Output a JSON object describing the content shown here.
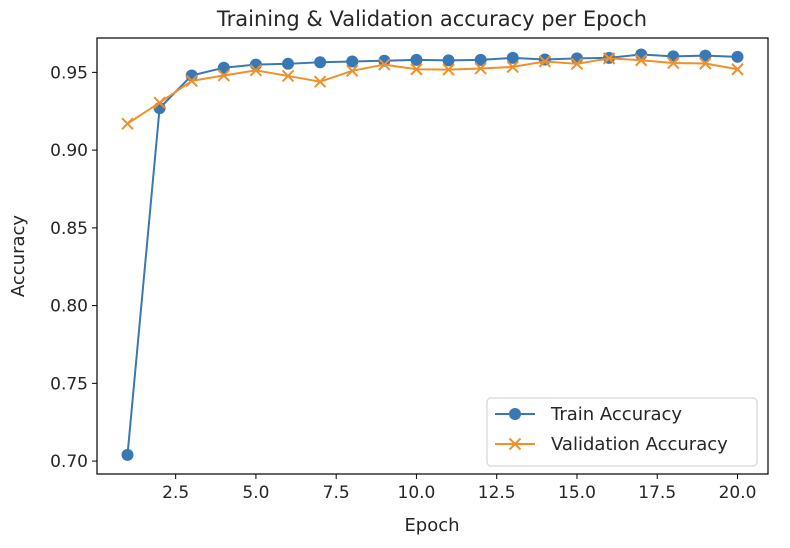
{
  "chart_data": {
    "type": "line",
    "title": "Training & Validation accuracy per Epoch",
    "xlabel": "Epoch",
    "ylabel": "Accuracy",
    "xlim": [
      0.05,
      20.95
    ],
    "ylim": [
      0.6917,
      0.9721
    ],
    "xticks": [
      2.5,
      5.0,
      7.5,
      10.0,
      12.5,
      15.0,
      17.5,
      20.0
    ],
    "xtick_labels": [
      "2.5",
      "5.0",
      "7.5",
      "10.0",
      "12.5",
      "15.0",
      "17.5",
      "20.0"
    ],
    "yticks": [
      0.7,
      0.75,
      0.8,
      0.85,
      0.9,
      0.95
    ],
    "ytick_labels": [
      "0.70",
      "0.75",
      "0.80",
      "0.85",
      "0.90",
      "0.95"
    ],
    "grid": false,
    "legend_position": "lower-right",
    "x": [
      1,
      2,
      3,
      4,
      5,
      6,
      7,
      8,
      9,
      10,
      11,
      12,
      13,
      14,
      15,
      16,
      17,
      18,
      19,
      20
    ],
    "series": [
      {
        "name": "Train Accuracy",
        "color": "#3a78b5",
        "marker": "circle",
        "values": [
          0.704,
          0.927,
          0.948,
          0.953,
          0.955,
          0.9555,
          0.9565,
          0.957,
          0.9575,
          0.958,
          0.9577,
          0.958,
          0.9593,
          0.9583,
          0.959,
          0.9593,
          0.9615,
          0.9603,
          0.9608,
          0.96
        ]
      },
      {
        "name": "Validation Accuracy",
        "color": "#f0902b",
        "marker": "x",
        "values": [
          0.917,
          0.9305,
          0.9445,
          0.948,
          0.9513,
          0.9477,
          0.944,
          0.951,
          0.955,
          0.952,
          0.9518,
          0.9525,
          0.9535,
          0.957,
          0.9555,
          0.959,
          0.9578,
          0.956,
          0.9557,
          0.952
        ]
      }
    ]
  }
}
